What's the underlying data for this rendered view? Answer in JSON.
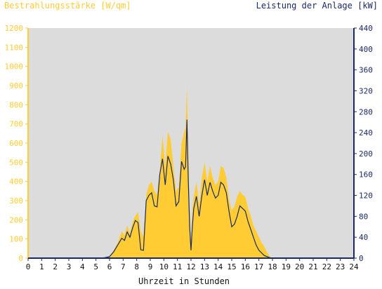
{
  "chart_data": {
    "type": "area",
    "title_left": "Bestrahlungsstärke [W/qm]",
    "title_right": "Leistung der Anlage [kW]",
    "xlabel": "Uhrzeit in Stunden",
    "xlim": [
      0,
      24
    ],
    "x_ticks": [
      "0",
      "1",
      "2",
      "3",
      "4",
      "5",
      "6",
      "7",
      "8",
      "9",
      "10",
      "11",
      "12",
      "13",
      "14",
      "15",
      "16",
      "17",
      "18",
      "19",
      "20",
      "21",
      "22",
      "23",
      "24"
    ],
    "y_left": {
      "lim": [
        0,
        1200
      ],
      "ticks": [
        "0",
        "100",
        "200",
        "300",
        "400",
        "500",
        "600",
        "700",
        "800",
        "900",
        "1000",
        "1100",
        "1200"
      ]
    },
    "y_right": {
      "lim": [
        0,
        440
      ],
      "ticks": [
        "0",
        "40",
        "80",
        "120",
        "160",
        "200",
        "240",
        "280",
        "320",
        "360",
        "400",
        "440"
      ]
    },
    "grid": false,
    "colors": {
      "irradiance_fill": "#ffcc33",
      "power_line": "#1a2a66",
      "plot_background": "#dcdcdc",
      "left_axis": "#ffcc33",
      "right_axis": "#1a2a66"
    },
    "series": [
      {
        "name": "Bestrahlungsstärke [W/qm]",
        "axis": "left",
        "style": "filled-area",
        "x": [
          0,
          5.5,
          6.0,
          6.3,
          6.6,
          6.9,
          7.1,
          7.3,
          7.5,
          7.7,
          7.9,
          8.1,
          8.3,
          8.5,
          8.7,
          8.9,
          9.1,
          9.3,
          9.5,
          9.7,
          9.9,
          10.1,
          10.3,
          10.5,
          10.7,
          10.9,
          11.1,
          11.3,
          11.5,
          11.6,
          11.7,
          11.8,
          11.9,
          12.0,
          12.1,
          12.2,
          12.4,
          12.6,
          12.8,
          13.0,
          13.2,
          13.4,
          13.6,
          13.8,
          14.0,
          14.2,
          14.4,
          14.6,
          14.8,
          15.0,
          15.2,
          15.4,
          15.6,
          15.8,
          16.0,
          16.2,
          16.4,
          16.6,
          16.8,
          17.0,
          17.2,
          17.4,
          17.6,
          17.8,
          18.0,
          18.3,
          18.6,
          18.9,
          19.2,
          19.5,
          19.8,
          20.0,
          24
        ],
        "values": [
          0,
          0,
          10,
          40,
          80,
          140,
          120,
          170,
          130,
          190,
          220,
          240,
          140,
          110,
          330,
          380,
          400,
          350,
          330,
          450,
          640,
          480,
          660,
          620,
          480,
          350,
          370,
          600,
          660,
          680,
          900,
          550,
          250,
          80,
          250,
          320,
          400,
          280,
          420,
          500,
          400,
          480,
          420,
          380,
          400,
          480,
          470,
          420,
          310,
          250,
          270,
          320,
          350,
          330,
          320,
          260,
          220,
          170,
          140,
          110,
          80,
          60,
          30,
          10,
          0,
          0,
          0,
          0,
          0,
          0,
          0,
          0,
          0
        ]
      },
      {
        "name": "Leistung der Anlage [kW]",
        "axis": "right",
        "style": "line",
        "x": [
          0,
          5.5,
          6.0,
          6.3,
          6.6,
          6.9,
          7.1,
          7.3,
          7.5,
          7.7,
          7.9,
          8.1,
          8.3,
          8.5,
          8.7,
          8.9,
          9.1,
          9.3,
          9.5,
          9.7,
          9.9,
          10.1,
          10.3,
          10.5,
          10.7,
          10.9,
          11.1,
          11.3,
          11.5,
          11.6,
          11.7,
          11.8,
          11.9,
          12.0,
          12.1,
          12.2,
          12.4,
          12.6,
          12.8,
          13.0,
          13.2,
          13.4,
          13.6,
          13.8,
          14.0,
          14.2,
          14.4,
          14.6,
          14.8,
          15.0,
          15.2,
          15.4,
          15.6,
          15.8,
          16.0,
          16.2,
          16.4,
          16.6,
          16.8,
          17.0,
          17.2,
          17.4,
          17.6,
          17.8,
          18.0,
          18.3,
          18.6,
          18.9,
          19.2,
          19.5,
          19.8,
          20.0,
          24
        ],
        "values": [
          0,
          0,
          3,
          12,
          25,
          38,
          34,
          50,
          40,
          58,
          72,
          68,
          16,
          15,
          110,
          120,
          125,
          100,
          98,
          160,
          190,
          140,
          195,
          180,
          150,
          100,
          108,
          185,
          170,
          175,
          265,
          150,
          60,
          15,
          60,
          95,
          118,
          80,
          120,
          150,
          120,
          145,
          128,
          115,
          120,
          145,
          140,
          125,
          90,
          60,
          65,
          80,
          100,
          95,
          90,
          70,
          55,
          40,
          25,
          15,
          10,
          5,
          3,
          1,
          0,
          0,
          0,
          0,
          0,
          0,
          0,
          0,
          0
        ]
      }
    ]
  }
}
